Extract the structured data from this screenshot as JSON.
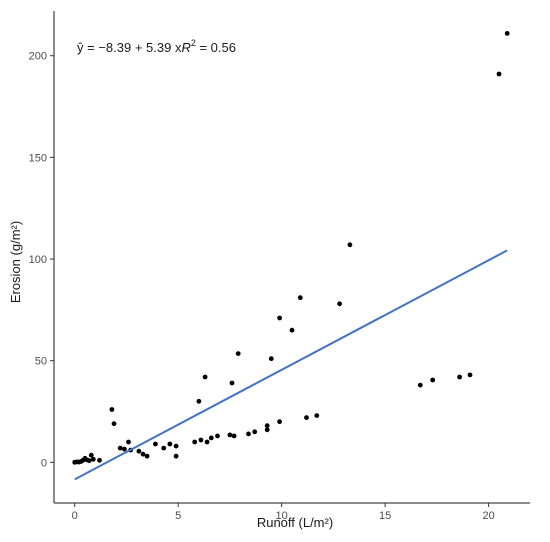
{
  "chart_data": {
    "type": "scatter",
    "title": "",
    "xlabel": "Runoff (L/m²)",
    "ylabel": "Erosion (g/m²)",
    "xlim": [
      -1,
      22
    ],
    "ylim": [
      -20,
      222
    ],
    "xticks": [
      0,
      5,
      10,
      15,
      20
    ],
    "yticks": [
      0,
      50,
      100,
      150,
      200
    ],
    "grid": false,
    "legend": "none",
    "equation": {
      "lhs": "ŷ = ",
      "rhs": "−8.39 + 5.39 x",
      "r2_label": "R",
      "r2_sup": "2",
      "r2_value": " = 0.56"
    },
    "fit": {
      "intercept": -8.39,
      "slope": 5.39,
      "x_range": [
        0,
        20.9
      ]
    },
    "colors": {
      "points": "#000000",
      "fit_line": "#4472C4"
    },
    "points": [
      [
        0.0,
        0.0
      ],
      [
        0.1,
        0.2
      ],
      [
        0.2,
        0.1
      ],
      [
        0.3,
        0.4
      ],
      [
        0.4,
        1.0
      ],
      [
        0.5,
        2.0
      ],
      [
        0.6,
        1.2
      ],
      [
        0.7,
        0.8
      ],
      [
        0.8,
        3.5
      ],
      [
        0.9,
        1.5
      ],
      [
        1.2,
        1.0
      ],
      [
        1.8,
        26.0
      ],
      [
        1.9,
        19.0
      ],
      [
        2.2,
        7.0
      ],
      [
        2.4,
        6.5
      ],
      [
        2.6,
        10.0
      ],
      [
        2.7,
        6.0
      ],
      [
        3.1,
        5.5
      ],
      [
        3.3,
        4.0
      ],
      [
        3.5,
        3.0
      ],
      [
        3.9,
        9.0
      ],
      [
        4.3,
        7.0
      ],
      [
        4.6,
        9.0
      ],
      [
        4.9,
        8.0
      ],
      [
        4.9,
        3.0
      ],
      [
        5.8,
        10.0
      ],
      [
        6.0,
        30.0
      ],
      [
        6.1,
        11.0
      ],
      [
        6.3,
        42.0
      ],
      [
        6.4,
        10.0
      ],
      [
        6.6,
        12.0
      ],
      [
        6.9,
        13.0
      ],
      [
        7.5,
        13.5
      ],
      [
        7.6,
        39.0
      ],
      [
        7.7,
        13.0
      ],
      [
        7.9,
        53.5
      ],
      [
        8.4,
        14.0
      ],
      [
        8.7,
        15.0
      ],
      [
        9.3,
        16.0
      ],
      [
        9.3,
        18.0
      ],
      [
        9.5,
        51.0
      ],
      [
        9.9,
        20.0
      ],
      [
        9.9,
        71.0
      ],
      [
        10.5,
        65.0
      ],
      [
        10.9,
        81.0
      ],
      [
        11.2,
        22.0
      ],
      [
        11.7,
        23.0
      ],
      [
        12.8,
        78.0
      ],
      [
        13.3,
        107.0
      ],
      [
        16.7,
        38.0
      ],
      [
        17.3,
        40.5
      ],
      [
        18.6,
        42.0
      ],
      [
        19.1,
        43.0
      ],
      [
        20.5,
        191.0
      ],
      [
        20.9,
        211.0
      ]
    ]
  }
}
